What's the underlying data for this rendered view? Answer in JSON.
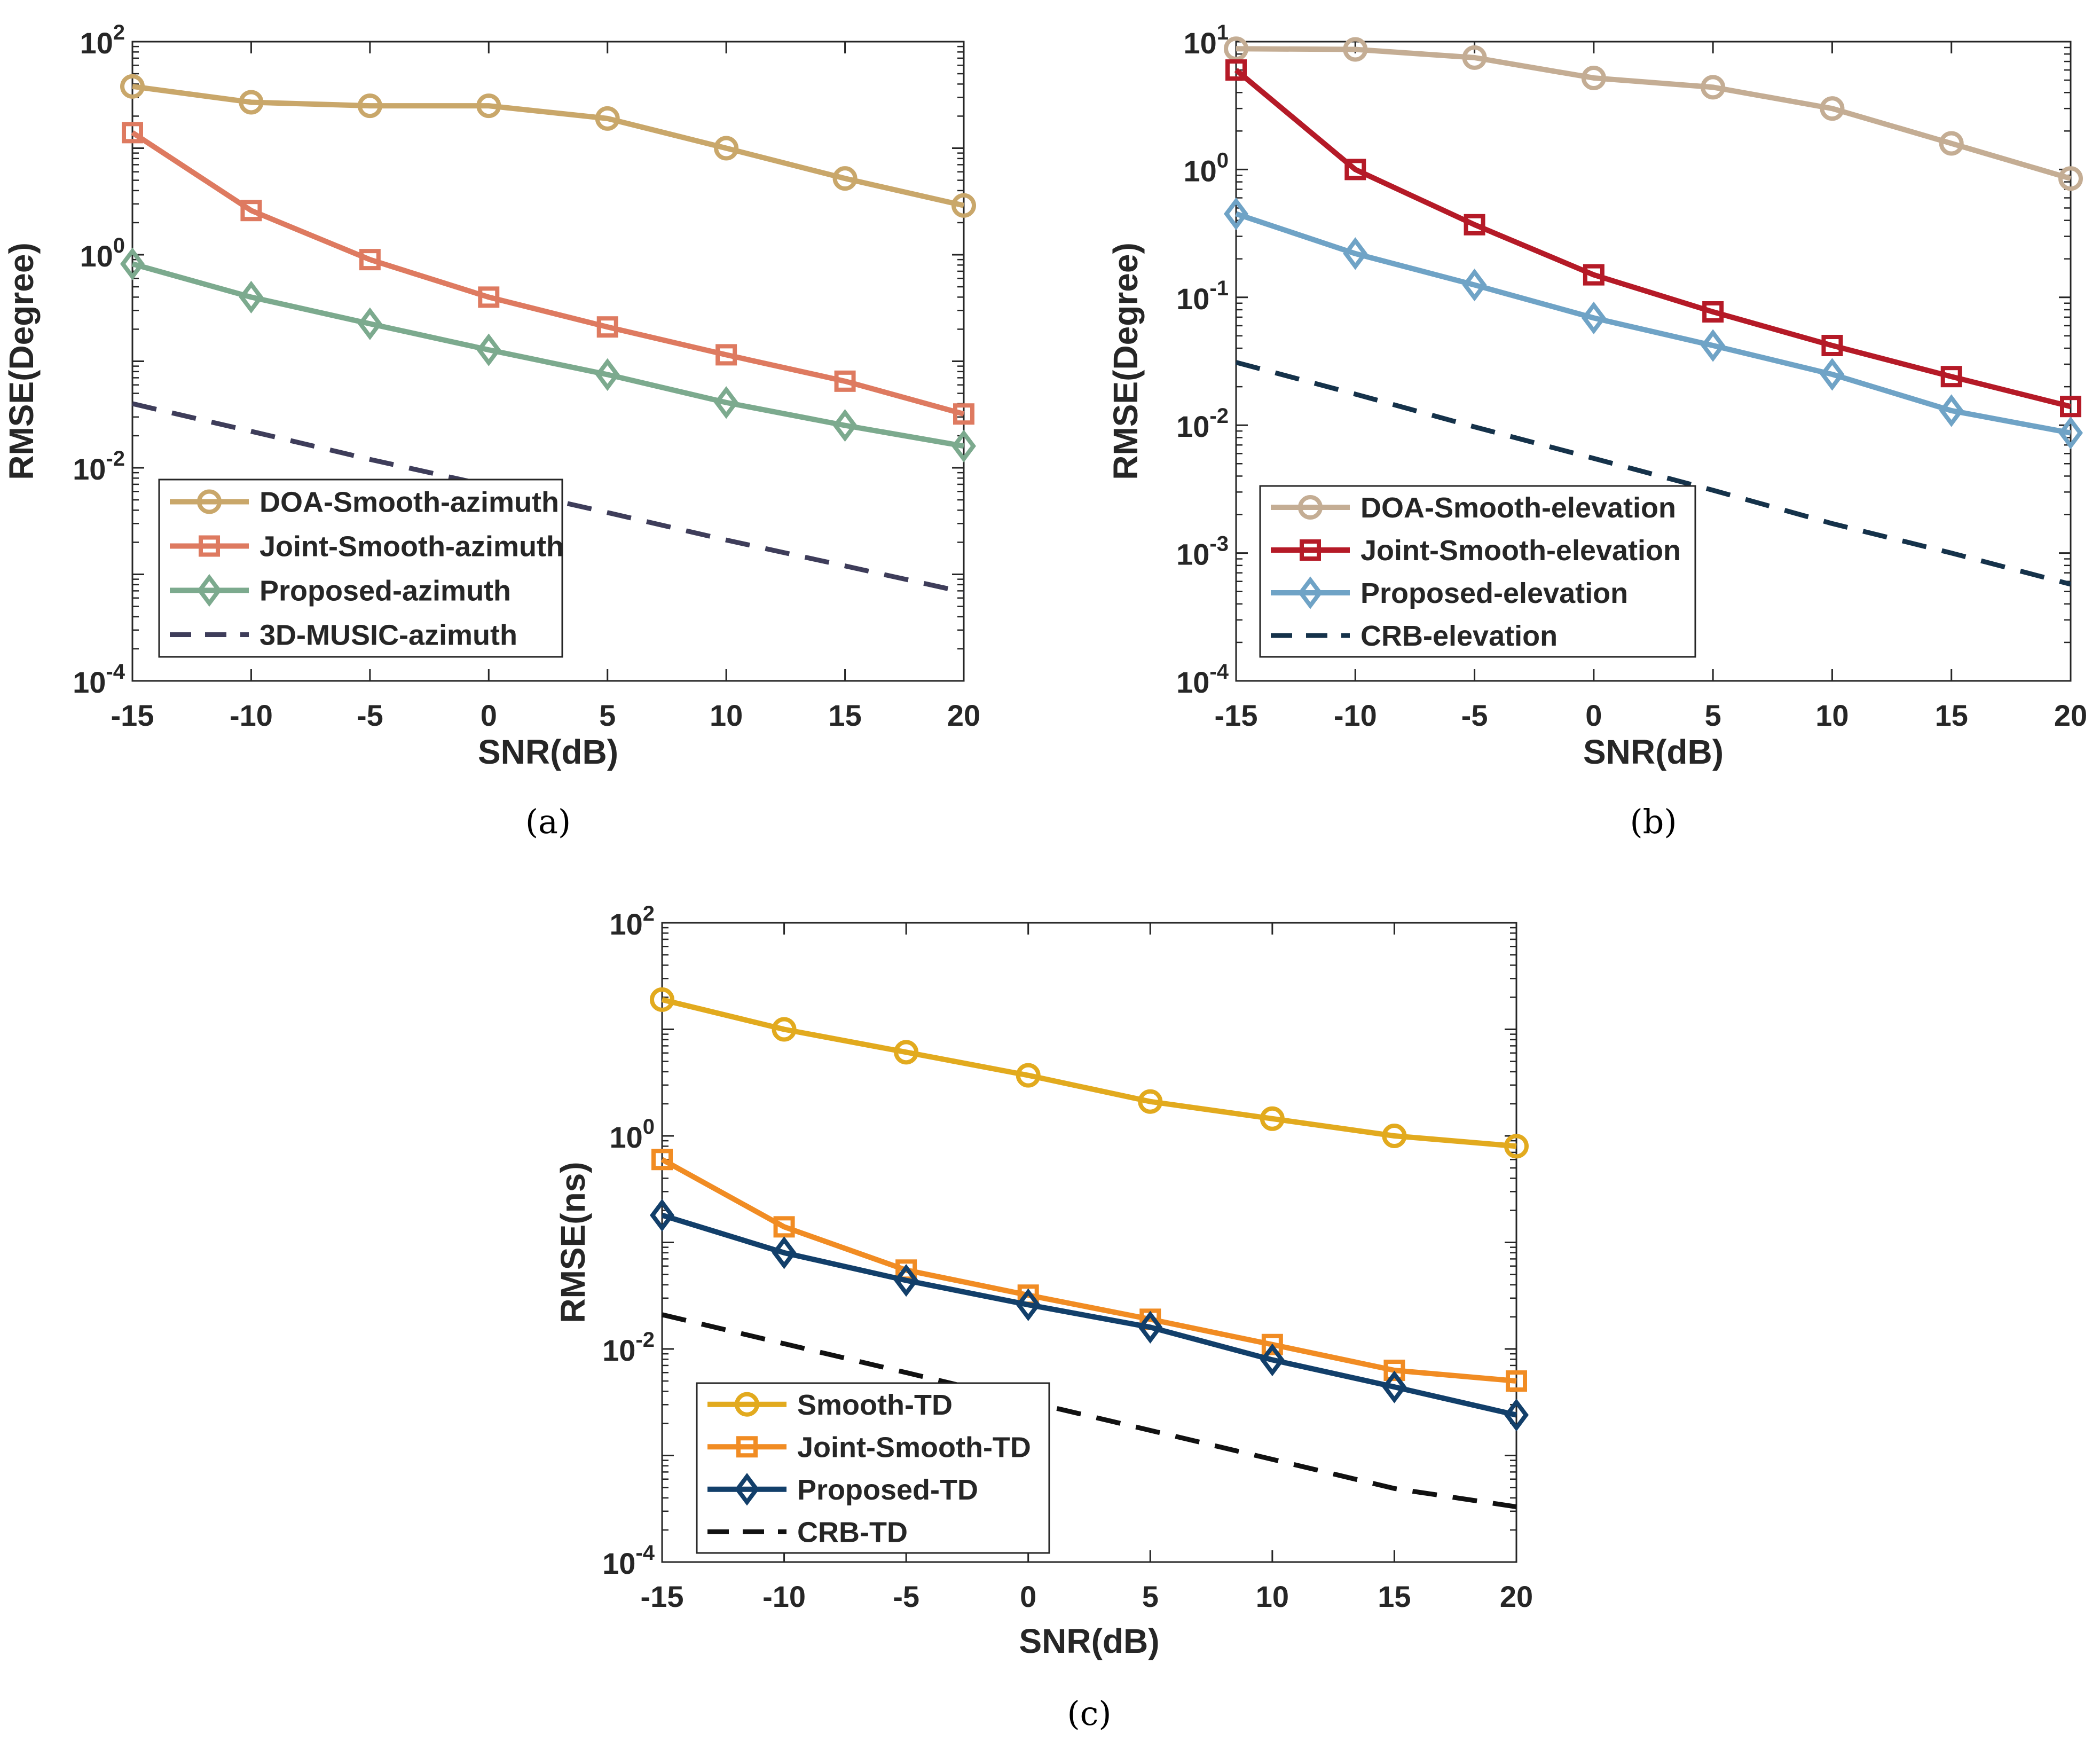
{
  "chart_data": [
    {
      "type": "line",
      "caption": "(a)",
      "xlabel": "SNR(dB)",
      "ylabel": "RMSE(Degree)",
      "yscale": "log",
      "xlim": [
        -15,
        20
      ],
      "ylim": [
        0.0001,
        100
      ],
      "x": [
        -15,
        -10,
        -5,
        0,
        5,
        10,
        15,
        20
      ],
      "xticks": [
        "-15",
        "-10",
        "-5",
        "0",
        "5",
        "10",
        "15",
        "20"
      ],
      "yticks": [
        {
          "value": 100,
          "base": "10",
          "exp": "2"
        },
        {
          "value": 1,
          "base": "10",
          "exp": "0"
        },
        {
          "value": 0.01,
          "base": "10",
          "exp": "-2"
        },
        {
          "value": 0.0001,
          "base": "10",
          "exp": "-4"
        }
      ],
      "legend_position": "bottom-left",
      "series": [
        {
          "name": "DOA-Smooth-azimuth",
          "color": "#C9A76A",
          "marker": "circle",
          "dash": false,
          "values": [
            38,
            27,
            25,
            25,
            19,
            10,
            5.2,
            2.9
          ]
        },
        {
          "name": "Joint-Smooth-azimuth",
          "color": "#DE7A60",
          "marker": "square",
          "dash": false,
          "values": [
            14,
            2.6,
            0.9,
            0.4,
            0.21,
            0.115,
            0.065,
            0.032
          ]
        },
        {
          "name": "Proposed-azimuth",
          "color": "#7CAA8E",
          "marker": "diamond",
          "dash": false,
          "values": [
            0.82,
            0.4,
            0.225,
            0.128,
            0.075,
            0.041,
            0.025,
            0.016
          ]
        },
        {
          "name": "3D-MUSIC-azimuth",
          "color": "#3E3D5A",
          "marker": "none",
          "dash": true,
          "values": [
            0.04,
            0.022,
            0.012,
            0.0068,
            0.0038,
            0.0021,
            0.0012,
            0.00068
          ]
        }
      ]
    },
    {
      "type": "line",
      "caption": "(b)",
      "xlabel": "SNR(dB)",
      "ylabel": "RMSE(Degree)",
      "yscale": "log",
      "xlim": [
        -15,
        20
      ],
      "ylim": [
        0.0001,
        10
      ],
      "x": [
        -15,
        -10,
        -5,
        0,
        5,
        10,
        15,
        20
      ],
      "xticks": [
        "-15",
        "-10",
        "-5",
        "0",
        "5",
        "10",
        "15",
        "20"
      ],
      "yticks": [
        {
          "value": 10,
          "base": "10",
          "exp": "1"
        },
        {
          "value": 1,
          "base": "10",
          "exp": "0"
        },
        {
          "value": 0.1,
          "base": "10",
          "exp": "-1"
        },
        {
          "value": 0.01,
          "base": "10",
          "exp": "-2"
        },
        {
          "value": 0.001,
          "base": "10",
          "exp": "-3"
        },
        {
          "value": 0.0001,
          "base": "10",
          "exp": "-4"
        }
      ],
      "legend_position": "bottom-left",
      "series": [
        {
          "name": "DOA-Smooth-elevation",
          "color": "#C4AD94",
          "marker": "circle",
          "dash": false,
          "values": [
            8.8,
            8.7,
            7.5,
            5.2,
            4.4,
            3.0,
            1.6,
            0.85
          ]
        },
        {
          "name": "Joint-Smooth-elevation",
          "color": "#B51A27",
          "marker": "square",
          "dash": false,
          "values": [
            6.0,
            1.0,
            0.37,
            0.15,
            0.077,
            0.042,
            0.024,
            0.014
          ]
        },
        {
          "name": "Proposed-elevation",
          "color": "#6FA3C6",
          "marker": "diamond",
          "dash": false,
          "values": [
            0.45,
            0.22,
            0.125,
            0.069,
            0.042,
            0.025,
            0.013,
            0.0087
          ]
        },
        {
          "name": "CRB-elevation",
          "color": "#15324A",
          "marker": "none",
          "dash": true,
          "values": [
            0.031,
            0.0175,
            0.0097,
            0.0055,
            0.0031,
            0.0017,
            0.001,
            0.00057
          ]
        }
      ]
    },
    {
      "type": "line",
      "caption": "(c)",
      "xlabel": "SNR(dB)",
      "ylabel": "RMSE(ns)",
      "yscale": "log",
      "xlim": [
        -15,
        20
      ],
      "ylim": [
        0.0001,
        100
      ],
      "x": [
        -15,
        -10,
        -5,
        0,
        5,
        10,
        15,
        20
      ],
      "xticks": [
        "-15",
        "-10",
        "-5",
        "0",
        "5",
        "10",
        "15",
        "20"
      ],
      "yticks": [
        {
          "value": 100,
          "base": "10",
          "exp": "2"
        },
        {
          "value": 1,
          "base": "10",
          "exp": "0"
        },
        {
          "value": 0.01,
          "base": "10",
          "exp": "-2"
        },
        {
          "value": 0.0001,
          "base": "10",
          "exp": "-4"
        }
      ],
      "legend_position": "bottom-left",
      "series": [
        {
          "name": "Smooth-TD",
          "color": "#E2AA1E",
          "marker": "circle",
          "dash": false,
          "values": [
            19,
            10,
            6.1,
            3.7,
            2.1,
            1.45,
            1.0,
            0.8
          ]
        },
        {
          "name": "Joint-Smooth-TD",
          "color": "#F18C23",
          "marker": "square",
          "dash": false,
          "values": [
            0.6,
            0.14,
            0.055,
            0.032,
            0.019,
            0.011,
            0.0063,
            0.005
          ]
        },
        {
          "name": "Proposed-TD",
          "color": "#123F6A",
          "marker": "diamond",
          "dash": false,
          "values": [
            0.18,
            0.08,
            0.044,
            0.026,
            0.016,
            0.0079,
            0.0044,
            0.0024
          ]
        },
        {
          "name": "CRB-TD",
          "color": "#111111",
          "marker": "none",
          "dash": true,
          "values": [
            0.021,
            0.0112,
            0.006,
            0.0032,
            0.00172,
            0.00092,
            0.00049,
            0.00033
          ]
        }
      ]
    }
  ]
}
